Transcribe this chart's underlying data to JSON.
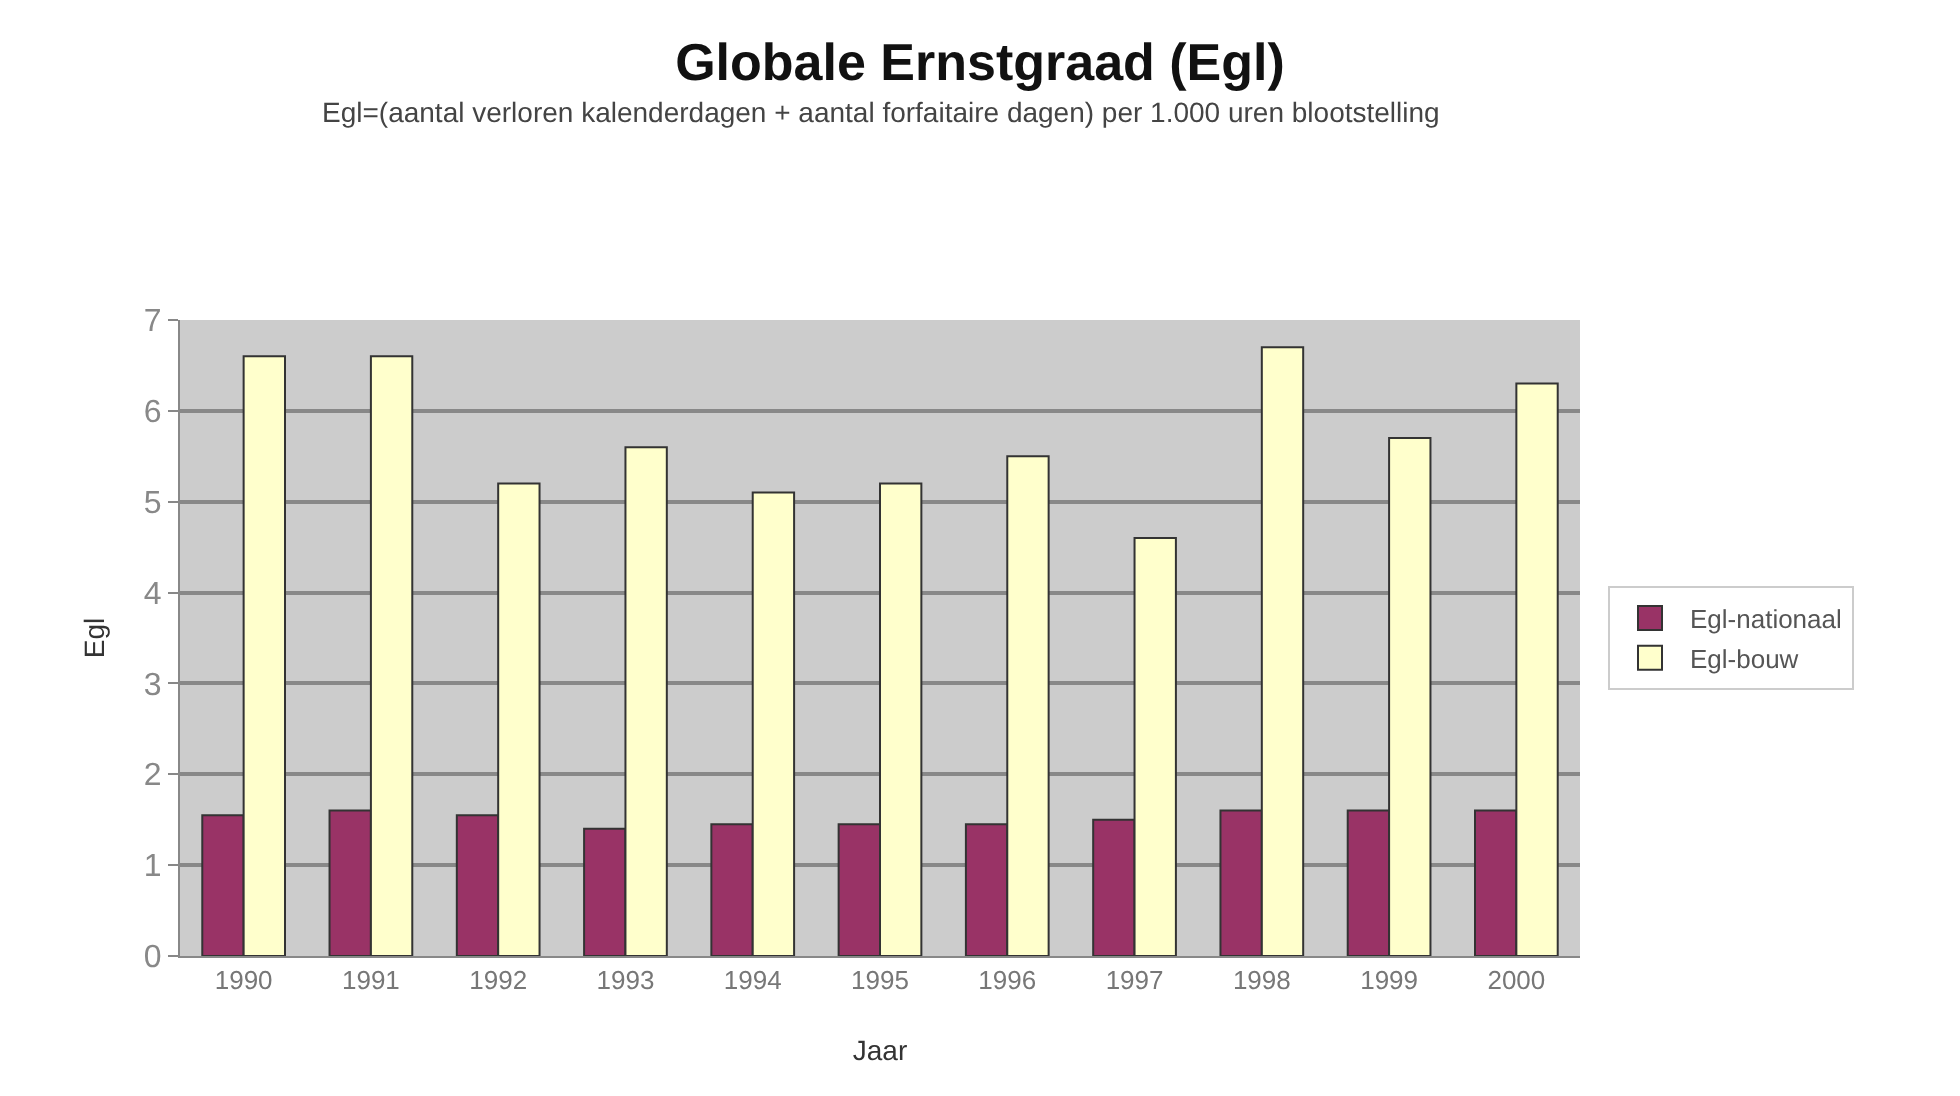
{
  "chart_data": {
    "type": "bar",
    "title": "Globale Ernstgraad (Egl)",
    "subtitle": "Egl=(aantal verloren kalenderdagen + aantal forfaitaire dagen) per 1.000 uren blootstelling",
    "xlabel": "Jaar",
    "ylabel": "Egl",
    "categories": [
      "1990",
      "1991",
      "1992",
      "1993",
      "1994",
      "1995",
      "1996",
      "1997",
      "1998",
      "1999",
      "2000"
    ],
    "series": [
      {
        "name": "Egl-nationaal",
        "color": "#993366",
        "values": [
          1.55,
          1.6,
          1.55,
          1.4,
          1.45,
          1.45,
          1.45,
          1.5,
          1.6,
          1.6,
          1.6
        ]
      },
      {
        "name": "Egl-bouw",
        "color": "#ffffcc",
        "values": [
          6.6,
          6.6,
          5.2,
          5.6,
          5.1,
          5.2,
          5.5,
          4.6,
          6.7,
          5.7,
          6.3
        ]
      }
    ],
    "ylim": [
      0,
      7
    ],
    "yticks": [
      0,
      1,
      2,
      3,
      4,
      5,
      6,
      7
    ],
    "grid": "y",
    "legend": "right"
  }
}
